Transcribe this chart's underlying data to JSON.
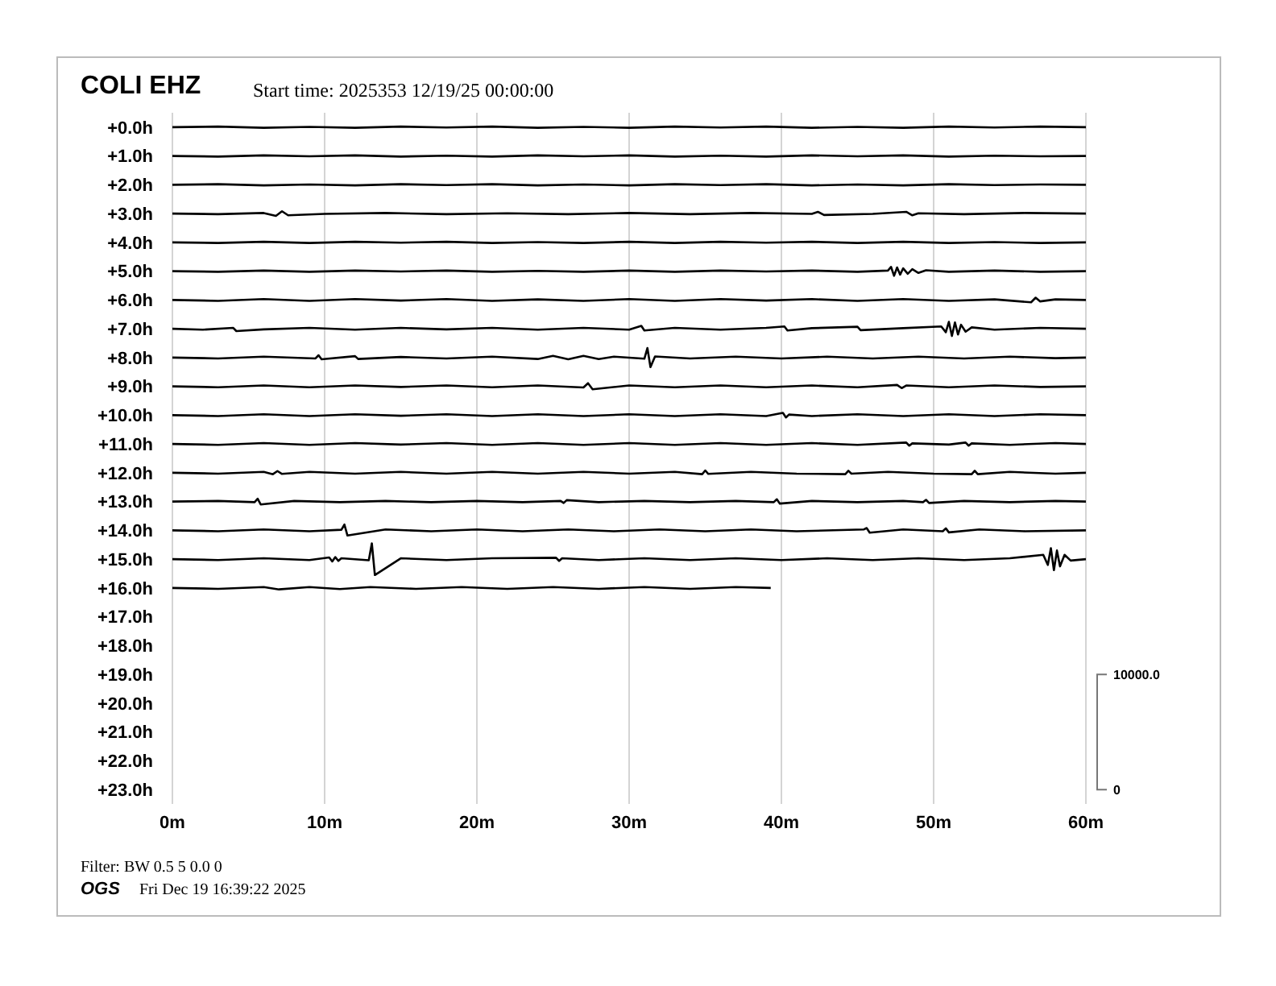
{
  "chart_data": {
    "type": "line",
    "title": "COLI EHZ",
    "subtitle": "Start time: 2025353 12/19/25 00:00:00",
    "annotations": [
      "Filter: BW 0.5 5 0.0 0",
      "OGS",
      "Fri Dec 19 16:39:22 2025"
    ],
    "xlim": [
      0,
      60
    ],
    "xticks": [
      {
        "value": 0,
        "label": "0m"
      },
      {
        "value": 10,
        "label": "10m"
      },
      {
        "value": 20,
        "label": "20m"
      },
      {
        "value": 30,
        "label": "30m"
      },
      {
        "value": 40,
        "label": "40m"
      },
      {
        "value": 50,
        "label": "50m"
      },
      {
        "value": 60,
        "label": "60m"
      }
    ],
    "ylim": [
      23.5,
      -0.5
    ],
    "yticks": [
      {
        "value": 0,
        "label": "+0.0h"
      },
      {
        "value": 1,
        "label": "+1.0h"
      },
      {
        "value": 2,
        "label": "+2.0h"
      },
      {
        "value": 3,
        "label": "+3.0h"
      },
      {
        "value": 4,
        "label": "+4.0h"
      },
      {
        "value": 5,
        "label": "+5.0h"
      },
      {
        "value": 6,
        "label": "+6.0h"
      },
      {
        "value": 7,
        "label": "+7.0h"
      },
      {
        "value": 8,
        "label": "+8.0h"
      },
      {
        "value": 9,
        "label": "+9.0h"
      },
      {
        "value": 10,
        "label": "+10.0h"
      },
      {
        "value": 11,
        "label": "+11.0h"
      },
      {
        "value": 12,
        "label": "+12.0h"
      },
      {
        "value": 13,
        "label": "+13.0h"
      },
      {
        "value": 14,
        "label": "+14.0h"
      },
      {
        "value": 15,
        "label": "+15.0h"
      },
      {
        "value": 16,
        "label": "+16.0h"
      },
      {
        "value": 17,
        "label": "+17.0h"
      },
      {
        "value": 18,
        "label": "+18.0h"
      },
      {
        "value": 19,
        "label": "+19.0h"
      },
      {
        "value": 20,
        "label": "+20.0h"
      },
      {
        "value": 21,
        "label": "+21.0h"
      },
      {
        "value": 22,
        "label": "+22.0h"
      },
      {
        "value": 23,
        "label": "+23.0h"
      }
    ],
    "y2lim": [
      -1250,
      58750
    ],
    "y2ticks": [
      {
        "value": 0,
        "label": "0"
      },
      {
        "value": 10000,
        "label": "10000.0"
      }
    ],
    "grid": "x",
    "series": [
      {
        "color": "#000000",
        "x": [
          0,
          3,
          6,
          9,
          12,
          15,
          18,
          21,
          24,
          27,
          30,
          33,
          36,
          39,
          42,
          45,
          48,
          51,
          54,
          57,
          60
        ],
        "values": [
          0,
          -0.02,
          0.02,
          -0.01,
          0.02,
          -0.02,
          0.01,
          -0.02,
          0.02,
          -0.01,
          0.02,
          -0.02,
          0.01,
          -0.02,
          0.02,
          -0.01,
          0.02,
          -0.02,
          0.01,
          -0.02,
          0
        ]
      },
      {
        "color": "#000000",
        "x": [
          0,
          3,
          6,
          9,
          12,
          15,
          18,
          21,
          24,
          27,
          30,
          33,
          36,
          39,
          42,
          45,
          48,
          51,
          54,
          57,
          60
        ],
        "values": [
          1,
          1.02,
          0.98,
          1.01,
          0.98,
          1.02,
          0.99,
          1.02,
          0.98,
          1.01,
          0.98,
          1.02,
          0.99,
          1.02,
          0.98,
          1.01,
          0.98,
          1.02,
          0.99,
          1.01,
          1
        ]
      },
      {
        "color": "#000000",
        "x": [
          0,
          3,
          6,
          9,
          12,
          15,
          18,
          21,
          24,
          27,
          30,
          33,
          36,
          39,
          42,
          45,
          48,
          51,
          54,
          57,
          60
        ],
        "values": [
          2,
          1.98,
          2.02,
          1.99,
          2.02,
          1.98,
          2.01,
          1.98,
          2.02,
          1.99,
          2.02,
          1.98,
          2.01,
          1.98,
          2.02,
          1.99,
          2.02,
          1.98,
          2.01,
          1.99,
          2
        ]
      },
      {
        "color": "#000000",
        "x": [
          0,
          3,
          6,
          6.8,
          7.2,
          7.6,
          10,
          14,
          18,
          22,
          26,
          30,
          34,
          38,
          42,
          42.4,
          42.8,
          46,
          48.2,
          48.6,
          49,
          52,
          56,
          60
        ],
        "values": [
          3,
          3.02,
          2.98,
          3.08,
          2.92,
          3.06,
          3.01,
          2.98,
          3.02,
          2.99,
          3.02,
          2.98,
          3.02,
          2.98,
          3.01,
          2.94,
          3.05,
          3.01,
          2.94,
          3.06,
          2.99,
          3.02,
          2.98,
          3
        ]
      },
      {
        "color": "#000000",
        "x": [
          0,
          3,
          6,
          9,
          12,
          15,
          18,
          21,
          24,
          27,
          30,
          33,
          36,
          39,
          42,
          45,
          48,
          51,
          54,
          57,
          60
        ],
        "values": [
          4,
          4.02,
          3.98,
          4.02,
          3.98,
          4.01,
          3.98,
          4.02,
          3.99,
          4.02,
          3.98,
          4.02,
          3.98,
          4.01,
          3.98,
          4.02,
          3.98,
          4.02,
          3.99,
          4.02,
          4
        ]
      },
      {
        "color": "#000000",
        "x": [
          0,
          3,
          6,
          9,
          12,
          15,
          18,
          21,
          24,
          27,
          30,
          33,
          36,
          39,
          42,
          45,
          47,
          47.2,
          47.4,
          47.6,
          47.8,
          48,
          48.3,
          48.6,
          49,
          49.5,
          51,
          54,
          57,
          60
        ],
        "values": [
          5,
          5.02,
          4.98,
          5.02,
          4.98,
          5.01,
          4.98,
          5.02,
          4.99,
          5.02,
          4.98,
          5.02,
          4.98,
          5.01,
          4.98,
          5.02,
          4.98,
          4.85,
          5.16,
          4.87,
          5.12,
          4.9,
          5.09,
          4.93,
          5.06,
          4.97,
          5.02,
          4.98,
          5.02,
          5
        ]
      },
      {
        "color": "#000000",
        "x": [
          0,
          3,
          6,
          9,
          12,
          15,
          18,
          21,
          24,
          27,
          30,
          33,
          36,
          39,
          42,
          45,
          48,
          51,
          54,
          56.4,
          56.7,
          57,
          58,
          60
        ],
        "values": [
          6,
          6.03,
          5.97,
          6.03,
          5.97,
          6.02,
          5.97,
          6.03,
          5.98,
          6.03,
          5.97,
          6.03,
          5.97,
          6.02,
          5.97,
          6.03,
          5.97,
          6.03,
          5.98,
          6.08,
          5.92,
          6.05,
          5.98,
          6
        ]
      },
      {
        "color": "#000000",
        "x": [
          0,
          2,
          4,
          4.2,
          6,
          9,
          12,
          15,
          18,
          21,
          24,
          27,
          30,
          30.8,
          31,
          33,
          36,
          39,
          40.2,
          40.4,
          42,
          45,
          45.2,
          48,
          50.5,
          50.8,
          51,
          51.2,
          51.4,
          51.6,
          51.8,
          52.1,
          52.5,
          54,
          57,
          60
        ],
        "values": [
          7,
          7.03,
          6.97,
          7.08,
          7.02,
          6.97,
          7.03,
          6.97,
          7.02,
          6.97,
          7.03,
          6.97,
          7.03,
          6.9,
          7.06,
          6.97,
          7.03,
          6.97,
          6.92,
          7.06,
          6.98,
          6.93,
          7.05,
          6.98,
          6.92,
          7.12,
          6.76,
          7.25,
          6.78,
          7.2,
          6.86,
          7.1,
          6.95,
          7.03,
          6.97,
          7
        ]
      },
      {
        "color": "#000000",
        "x": [
          0,
          3,
          6,
          9.4,
          9.6,
          9.8,
          12,
          12.2,
          15,
          18,
          21,
          24,
          25,
          26,
          27,
          28,
          29,
          31,
          31.2,
          31.4,
          31.7,
          34,
          37,
          40,
          43,
          46,
          49,
          52,
          55,
          58,
          60
        ],
        "values": [
          8,
          8.03,
          7.97,
          8.03,
          7.92,
          8.06,
          7.95,
          8.05,
          7.98,
          8.03,
          7.97,
          8.05,
          7.94,
          8.06,
          7.94,
          8.05,
          7.97,
          8.04,
          7.67,
          8.33,
          7.96,
          8.03,
          7.97,
          8.03,
          7.97,
          8.03,
          7.97,
          8.03,
          7.97,
          8.02,
          8
        ]
      },
      {
        "color": "#000000",
        "x": [
          0,
          3,
          6,
          9,
          12,
          15,
          18,
          21,
          24,
          27,
          27.3,
          27.6,
          30,
          33,
          36,
          39,
          42,
          45,
          47.6,
          47.9,
          48.2,
          51,
          54,
          57,
          60
        ],
        "values": [
          9,
          9.03,
          8.97,
          9.03,
          8.97,
          9.02,
          8.97,
          9.03,
          8.97,
          9.04,
          8.89,
          9.1,
          8.97,
          9.03,
          8.97,
          9.03,
          8.97,
          9.03,
          8.95,
          9.06,
          8.97,
          9.03,
          8.97,
          9.02,
          9
        ]
      },
      {
        "color": "#000000",
        "x": [
          0,
          3,
          6,
          9,
          12,
          15,
          18,
          21,
          24,
          27,
          30,
          33,
          36,
          39,
          40.1,
          40.3,
          40.5,
          42,
          45,
          48,
          51,
          54,
          57,
          60
        ],
        "values": [
          10,
          10.03,
          9.97,
          10.03,
          9.97,
          10.02,
          9.97,
          10.03,
          9.97,
          10.03,
          9.97,
          10.03,
          9.97,
          10.03,
          9.92,
          10.08,
          9.98,
          10.03,
          9.97,
          10.03,
          9.97,
          10.03,
          9.97,
          10
        ]
      },
      {
        "color": "#000000",
        "x": [
          0,
          3,
          6,
          9,
          12,
          15,
          18,
          21,
          24,
          27,
          30,
          33,
          36,
          39,
          42,
          45,
          48.2,
          48.4,
          48.6,
          51,
          52.1,
          52.3,
          52.5,
          55,
          58,
          60
        ],
        "values": [
          11,
          11.03,
          10.97,
          11.03,
          10.97,
          11.02,
          10.97,
          11.03,
          10.97,
          11.03,
          10.97,
          11.03,
          10.97,
          11.03,
          10.97,
          11.03,
          10.95,
          11.06,
          10.98,
          11.02,
          10.95,
          11.06,
          10.98,
          11.03,
          10.97,
          11
        ]
      },
      {
        "color": "#000000",
        "x": [
          0,
          3,
          6,
          6.6,
          6.9,
          7.2,
          9,
          12,
          15,
          18,
          21,
          24,
          27,
          30,
          33,
          34.8,
          35,
          35.2,
          38,
          41,
          44.2,
          44.4,
          44.6,
          47,
          50,
          52.5,
          52.7,
          52.9,
          55,
          58,
          60
        ],
        "values": [
          12,
          12.03,
          11.97,
          12.05,
          11.94,
          12.04,
          11.97,
          12.03,
          11.97,
          12.03,
          11.97,
          12.03,
          11.97,
          12.03,
          11.97,
          12.05,
          11.92,
          12.04,
          11.97,
          12.03,
          12.05,
          11.93,
          12.03,
          11.97,
          12.03,
          12.05,
          11.93,
          12.05,
          11.97,
          12.03,
          12
        ]
      },
      {
        "color": "#000000",
        "x": [
          0,
          3,
          5.4,
          5.6,
          5.8,
          8,
          11,
          14,
          17,
          20,
          23,
          25.5,
          25.7,
          25.9,
          28,
          31,
          34,
          37,
          39.5,
          39.7,
          39.9,
          42,
          45,
          48,
          49.3,
          49.5,
          49.7,
          52,
          55,
          58,
          60
        ],
        "values": [
          13,
          12.98,
          13.02,
          12.9,
          13.1,
          12.98,
          13.02,
          12.98,
          13.02,
          12.98,
          13.02,
          12.98,
          13.05,
          12.95,
          13.02,
          12.98,
          13.02,
          12.98,
          13.02,
          12.92,
          13.07,
          12.98,
          13.02,
          12.98,
          13.02,
          12.94,
          13.05,
          12.98,
          13.02,
          12.98,
          13
        ]
      },
      {
        "color": "#000000",
        "x": [
          0,
          3,
          6,
          9,
          11.1,
          11.3,
          11.5,
          14,
          17,
          20,
          23,
          26,
          29,
          32,
          35,
          38,
          41,
          45.4,
          45.6,
          45.8,
          48,
          50.6,
          50.8,
          51,
          53,
          56,
          60
        ],
        "values": [
          14,
          14.03,
          13.97,
          14.03,
          13.98,
          13.8,
          14.18,
          13.97,
          14.03,
          13.97,
          14.03,
          13.97,
          14.03,
          13.97,
          14.03,
          13.97,
          14.03,
          13.97,
          13.92,
          14.08,
          13.97,
          14.03,
          13.93,
          14.07,
          13.97,
          14.03,
          14
        ]
      },
      {
        "color": "#000000",
        "x": [
          0,
          3,
          6,
          9,
          10.3,
          10.5,
          10.7,
          10.9,
          11.1,
          12.9,
          13.1,
          13.3,
          15,
          18,
          21,
          25.2,
          25.4,
          25.6,
          28,
          31,
          34,
          37,
          40,
          43,
          46,
          49,
          52,
          55,
          57.2,
          57.5,
          57.7,
          57.9,
          58.1,
          58.3,
          58.6,
          59,
          60
        ],
        "values": [
          15,
          15.03,
          14.97,
          15.03,
          14.94,
          15.08,
          14.93,
          15.06,
          14.97,
          15.04,
          14.45,
          15.55,
          14.97,
          15.03,
          14.97,
          14.95,
          15.06,
          14.97,
          15.03,
          14.97,
          15.03,
          14.97,
          15.03,
          14.97,
          15.03,
          14.97,
          15.03,
          14.97,
          14.85,
          15.2,
          14.62,
          15.38,
          14.7,
          15.25,
          14.85,
          15.05,
          15
        ]
      },
      {
        "color": "#000000",
        "x": [
          0,
          3,
          6,
          7,
          9,
          11,
          13,
          16,
          19,
          22,
          25,
          28,
          31,
          34,
          37,
          39.3
        ],
        "values": [
          16,
          16.03,
          15.97,
          16.05,
          15.97,
          16.04,
          15.97,
          16.03,
          15.97,
          16.03,
          15.97,
          16.03,
          15.97,
          16.03,
          15.97,
          16
        ]
      }
    ]
  }
}
